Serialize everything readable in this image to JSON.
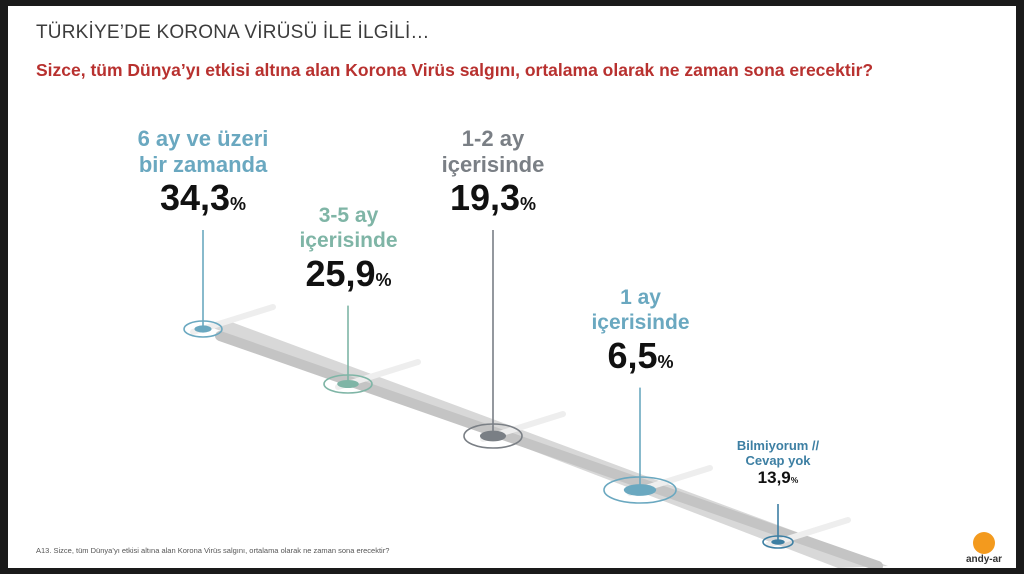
{
  "header": {
    "title": "TÜRKİYE’DE KORONA VİRÜSÜ İLE İLGİLİ…",
    "question": "Sizce, tüm Dünya’yı etkisi altına alan Korona Virüs salgını, ortalama olarak ne zaman sona erecektir?"
  },
  "footnote": "A13. Sizce, tüm Dünya’yı etkisi altına alan Korona Virüs salgını, ortalama olarak ne zaman sona erecektir?",
  "logo": {
    "text": "andy-ar",
    "icon": "andy-ar-logo-icon",
    "color": "#f39a1e"
  },
  "chart_data": {
    "type": "bar",
    "title": "Sizce, tüm Dünya’yı etkisi altına alan Korona Virüs salgını, ortalama olarak ne zaman sona erecektir?",
    "unit": "%",
    "categories": [
      "6 ay ve üzeri bir zamanda",
      "3-5 ay içerisinde",
      "1-2 ay içerisinde",
      "1 ay içerisinde",
      "Bilmiyorum // Cevap yok"
    ],
    "category_lines": [
      [
        "6 ay ve üzeri",
        "bir zamanda"
      ],
      [
        "3-5 ay",
        "içerisinde"
      ],
      [
        "1-2 ay",
        "içerisinde"
      ],
      [
        "1 ay",
        "içerisinde"
      ],
      [
        "Bilmiyorum //",
        "Cevap yok"
      ]
    ],
    "values": [
      34.3,
      25.9,
      19.3,
      6.5,
      13.9
    ],
    "value_labels": [
      "34,3",
      "25,9",
      "19,3",
      "6,5",
      "13,9"
    ],
    "percent_sign": "%",
    "colors": [
      "#6aa8c0",
      "#7fb5a6",
      "#7a7f85",
      "#6aa8c0",
      "#3d7fa3"
    ]
  }
}
